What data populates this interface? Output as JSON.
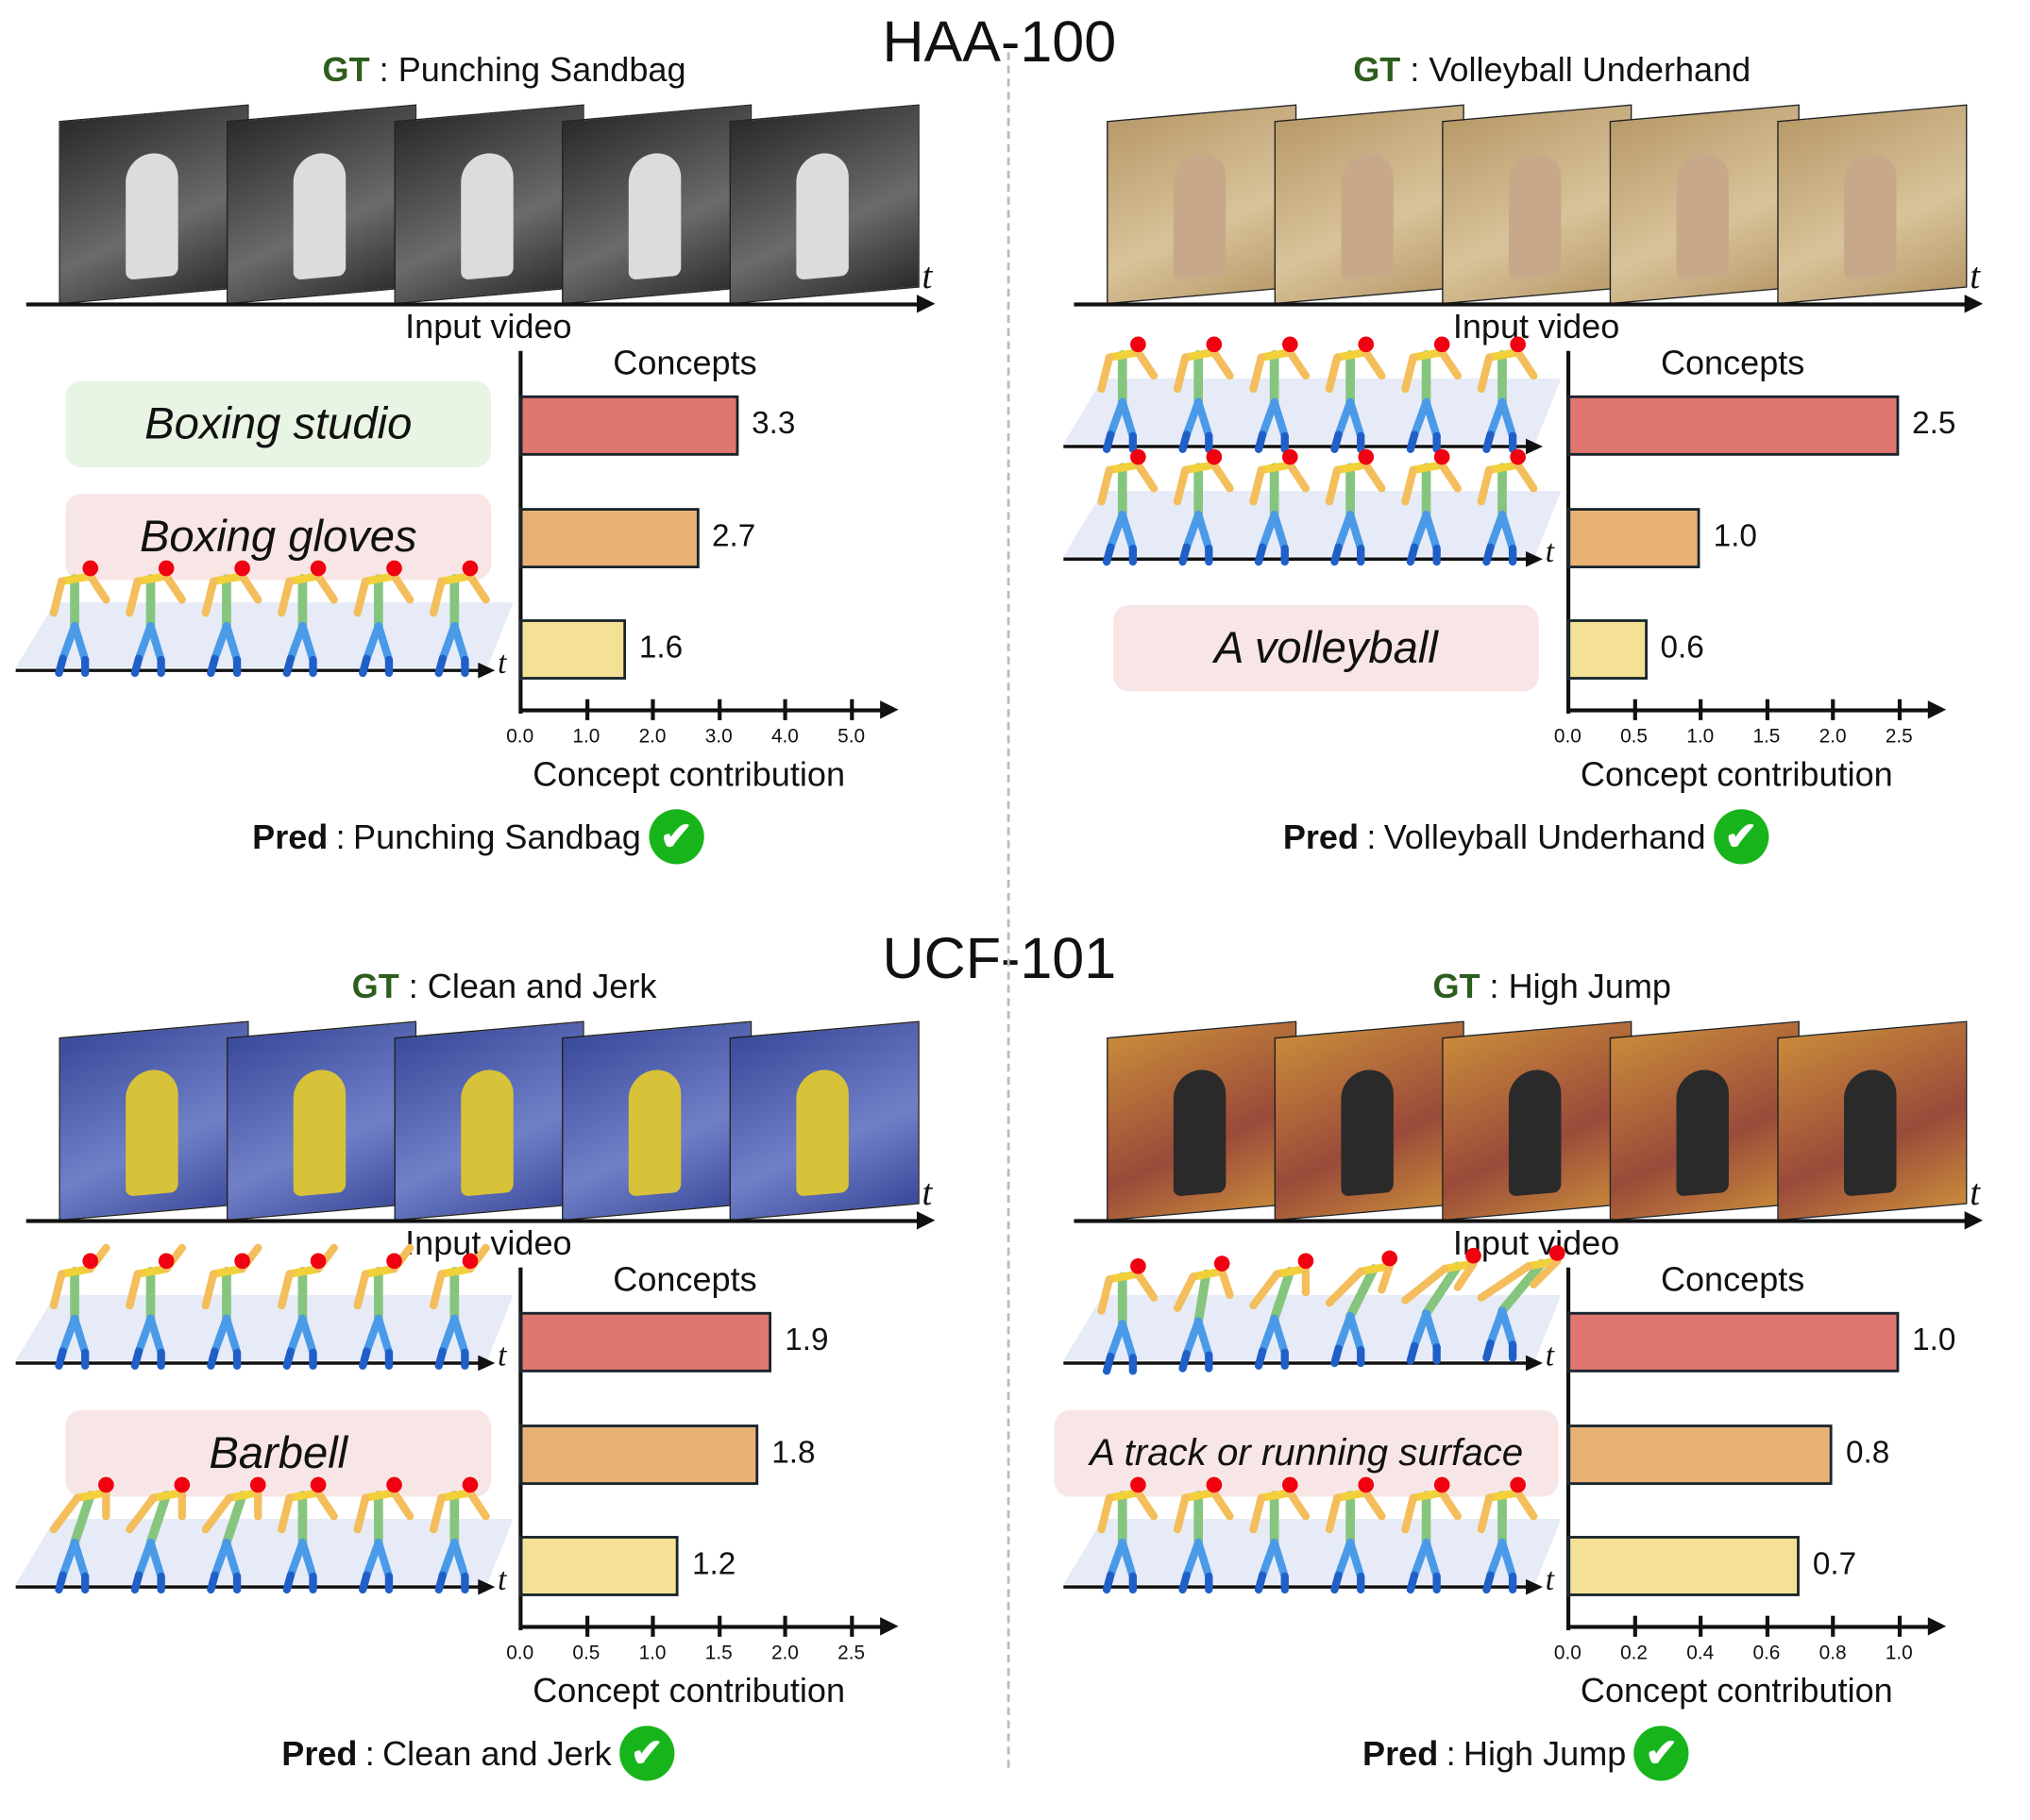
{
  "titles": {
    "top": "HAA-100",
    "bottom": "UCF-101"
  },
  "colors": {
    "bar_1": "#e07670",
    "bar_2": "#e9b074",
    "bar_3": "#f5e195",
    "concept_green": "#e8f5e4",
    "concept_pink": "#f8e6e6",
    "check": "#18b41c",
    "gt_label": "#2e5e1e"
  },
  "panels": [
    {
      "gt_label": "GT",
      "gt": "Punching Sandbag",
      "input_label": "Input video",
      "time_label": "t",
      "pred_label": "Pred",
      "pred": "Punching Sandbag",
      "frames_theme": "boxing",
      "concepts": [
        {
          "type": "text",
          "text": "Boxing studio",
          "bg": "green"
        },
        {
          "type": "text",
          "text": "Boxing gloves",
          "bg": "pink"
        },
        {
          "type": "skeleton",
          "pose": "boxing",
          "time_label": "t"
        }
      ]
    },
    {
      "gt_label": "GT",
      "gt": "Volleyball Underhand",
      "input_label": "Input video",
      "time_label": "t",
      "pred_label": "Pred",
      "pred": "Volleyball Underhand",
      "frames_theme": "gym",
      "concepts": [
        {
          "type": "skeleton",
          "pose": "swing"
        },
        {
          "type": "skeleton",
          "pose": "swing",
          "time_label": "t"
        },
        {
          "type": "text",
          "text": "A volleyball",
          "bg": "pink"
        }
      ]
    },
    {
      "gt_label": "GT",
      "gt": "Clean and Jerk",
      "input_label": "Input video",
      "time_label": "t",
      "pred_label": "Pred",
      "pred": "Clean and Jerk",
      "frames_theme": "lifting",
      "concepts": [
        {
          "type": "skeleton",
          "pose": "lift",
          "time_label": "t"
        },
        {
          "type": "text",
          "text": "Barbell",
          "bg": "pink"
        },
        {
          "type": "skeleton",
          "pose": "bend",
          "time_label": "t"
        }
      ]
    },
    {
      "gt_label": "GT",
      "gt": "High Jump",
      "input_label": "Input video",
      "time_label": "t",
      "pred_label": "Pred",
      "pred": "High Jump",
      "frames_theme": "track",
      "concepts": [
        {
          "type": "skeleton",
          "pose": "jump",
          "time_label": "t"
        },
        {
          "type": "text",
          "text": "A track or running surface",
          "bg": "pink"
        },
        {
          "type": "skeleton",
          "pose": "run",
          "time_label": "t"
        }
      ]
    }
  ],
  "chart_data": [
    {
      "type": "bar",
      "orientation": "horizontal",
      "ylabel": "Concepts",
      "xlabel": "Concept contribution",
      "values": [
        3.3,
        2.7,
        1.6
      ],
      "value_labels": [
        "3.3",
        "2.7",
        "1.6"
      ],
      "xlim": [
        0,
        5.0
      ],
      "ticks": [
        "0.0",
        "1.0",
        "2.0",
        "3.0",
        "4.0",
        "5.0"
      ],
      "grid": false
    },
    {
      "type": "bar",
      "orientation": "horizontal",
      "ylabel": "Concepts",
      "xlabel": "Concept contribution",
      "values": [
        2.5,
        1.0,
        0.6
      ],
      "value_labels": [
        "2.5",
        "1.0",
        "0.6"
      ],
      "xlim": [
        0,
        2.5
      ],
      "ticks": [
        "0.0",
        "0.5",
        "1.0",
        "1.5",
        "2.0",
        "2.5"
      ],
      "grid": false
    },
    {
      "type": "bar",
      "orientation": "horizontal",
      "ylabel": "Concepts",
      "xlabel": "Concept contribution",
      "values": [
        1.9,
        1.8,
        1.2
      ],
      "value_labels": [
        "1.9",
        "1.8",
        "1.2"
      ],
      "xlim": [
        0,
        2.5
      ],
      "ticks": [
        "0.0",
        "0.5",
        "1.0",
        "1.5",
        "2.0",
        "2.5"
      ],
      "grid": false
    },
    {
      "type": "bar",
      "orientation": "horizontal",
      "ylabel": "Concepts",
      "xlabel": "Concept contribution",
      "values": [
        1.0,
        0.8,
        0.7
      ],
      "value_labels": [
        "1.0",
        "0.8",
        "0.7"
      ],
      "xlim": [
        0,
        1.0
      ],
      "ticks": [
        "0.0",
        "0.2",
        "0.4",
        "0.6",
        "0.8",
        "1.0"
      ],
      "grid": false
    }
  ]
}
